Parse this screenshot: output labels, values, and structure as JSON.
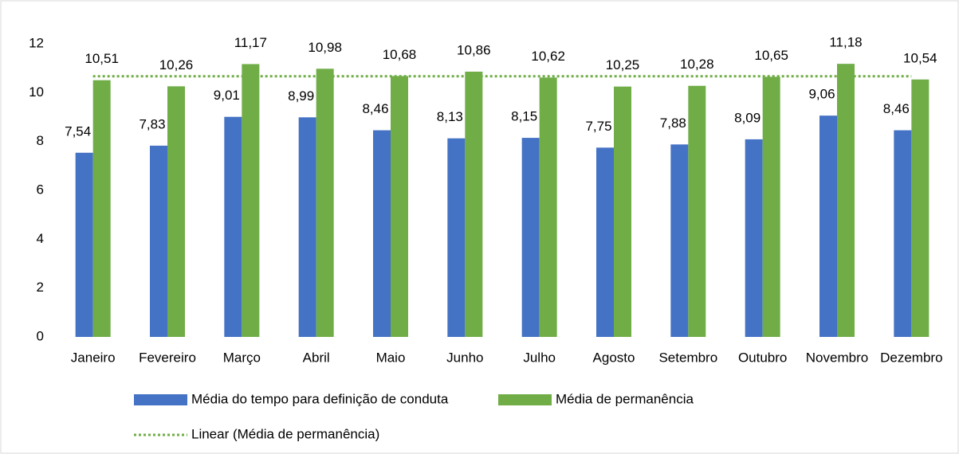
{
  "chart_data": {
    "type": "bar",
    "categories": [
      "Janeiro",
      "Fevereiro",
      "Março",
      "Abril",
      "Maio",
      "Junho",
      "Julho",
      "Agosto",
      "Setembro",
      "Outubro",
      "Novembro",
      "Dezembro"
    ],
    "series": [
      {
        "name": "Média do tempo para definição de conduta",
        "color": "#4472c4",
        "values": [
          7.54,
          7.83,
          9.01,
          8.99,
          8.46,
          8.13,
          8.15,
          7.75,
          7.88,
          8.09,
          9.06,
          8.46
        ],
        "value_labels": [
          "7,54",
          "7,83",
          "9,01",
          "8,99",
          "8,46",
          "8,13",
          "8,15",
          "7,75",
          "7,88",
          "8,09",
          "9,06",
          "8,46"
        ]
      },
      {
        "name": "Média de permanência",
        "color": "#70ad47",
        "values": [
          10.51,
          10.26,
          11.17,
          10.98,
          10.68,
          10.86,
          10.62,
          10.25,
          10.28,
          10.65,
          11.18,
          10.54
        ],
        "value_labels": [
          "10,51",
          "10,26",
          "11,17",
          "10,98",
          "10,68",
          "10,86",
          "10,62",
          "10,25",
          "10,28",
          "10,65",
          "11,18",
          "10,54"
        ]
      }
    ],
    "trendline": {
      "name": "Linear (Média de permanência)",
      "color": "#70ad47",
      "style": "dotted",
      "values": [
        10.67,
        10.67,
        10.67,
        10.67,
        10.67,
        10.67,
        10.67,
        10.67,
        10.67,
        10.67,
        10.67,
        10.67
      ]
    },
    "ylim": [
      0,
      12
    ],
    "yticks": [
      0,
      2,
      4,
      6,
      8,
      10,
      12
    ],
    "grid": false
  }
}
